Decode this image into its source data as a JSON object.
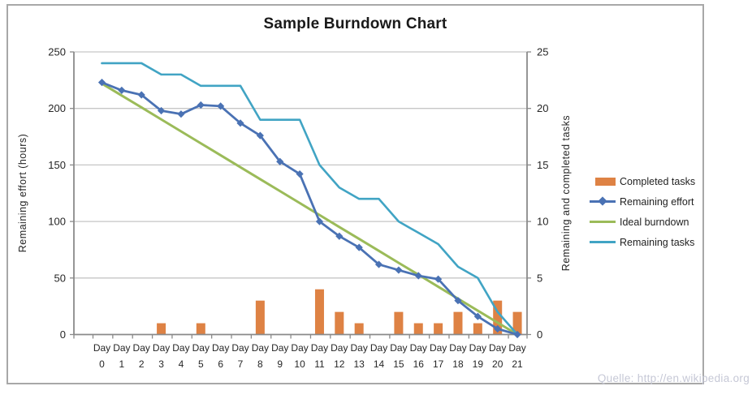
{
  "chart_data": {
    "type": "combo",
    "title": "Sample Burndown Chart",
    "categories": [
      "Day 0",
      "Day 1",
      "Day 2",
      "Day 3",
      "Day 4",
      "Day 5",
      "Day 6",
      "Day 7",
      "Day 8",
      "Day 9",
      "Day 10",
      "Day 11",
      "Day 12",
      "Day 13",
      "Day 14",
      "Day 15",
      "Day 16",
      "Day 17",
      "Day 18",
      "Day 19",
      "Day 20",
      "Day 21"
    ],
    "axes": {
      "left": {
        "label": "Remaining effort (hours)",
        "min": 0,
        "max": 250,
        "step": 50,
        "ticks": [
          "0",
          "50",
          "100",
          "150",
          "200",
          "250"
        ]
      },
      "right": {
        "label": "Remaining and completed tasks",
        "min": 0,
        "max": 25,
        "step": 5,
        "ticks": [
          "0",
          "5",
          "10",
          "15",
          "20",
          "25"
        ]
      }
    },
    "grid": true,
    "legend_position": "right",
    "series": [
      {
        "name": "Completed tasks",
        "type": "bar",
        "axis": "right",
        "color": "#de8244",
        "values": [
          0,
          0,
          0,
          1,
          0,
          1,
          0,
          0,
          3,
          0,
          0,
          4,
          2,
          1,
          0,
          2,
          1,
          1,
          2,
          1,
          3,
          2
        ]
      },
      {
        "name": "Remaining effort",
        "type": "line",
        "marker": "diamond",
        "axis": "left",
        "color": "#4a72b4",
        "values": [
          223,
          216,
          212,
          198,
          195,
          203,
          202,
          187,
          176,
          153,
          142,
          100,
          87,
          77,
          62,
          57,
          52,
          49,
          30,
          16,
          5,
          0
        ]
      },
      {
        "name": "Ideal burndown",
        "type": "line",
        "axis": "left",
        "color": "#9bbb59",
        "values": [
          222,
          211.4,
          200.9,
          190.3,
          179.7,
          169.1,
          158.6,
          148.0,
          137.4,
          126.9,
          116.3,
          105.7,
          95.1,
          84.6,
          74.0,
          63.4,
          52.9,
          42.3,
          31.7,
          21.1,
          10.6,
          0
        ]
      },
      {
        "name": "Remaining tasks",
        "type": "line",
        "axis": "right",
        "color": "#41a4c4",
        "values": [
          24,
          24,
          24,
          23,
          23,
          22,
          22,
          22,
          19,
          19,
          19,
          15,
          13,
          12,
          12,
          10,
          9,
          8,
          6,
          5,
          2,
          0
        ]
      }
    ]
  },
  "colors": {
    "gridline": "#c6c6c6",
    "axis_line": "#8a8a8a",
    "tick_text": "#262626",
    "watermark": "#c6c8d6"
  },
  "source_note": "Quelle: http://en.wikipedia.org"
}
